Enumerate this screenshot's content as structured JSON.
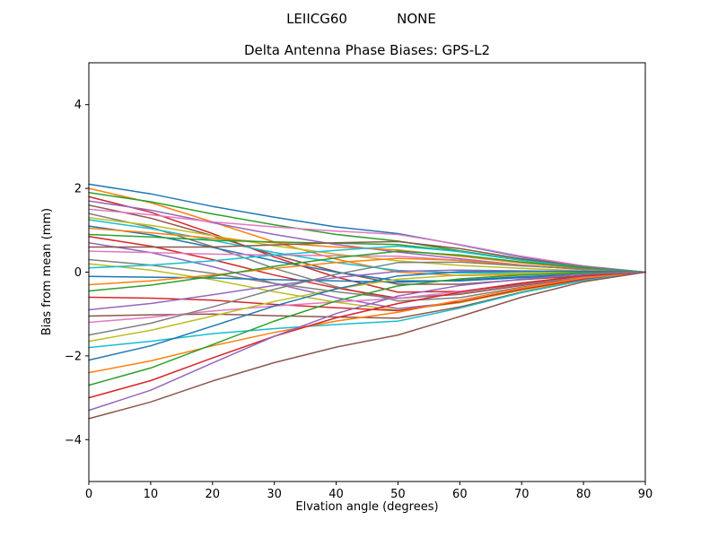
{
  "chart_data": {
    "type": "line",
    "suptitle_left": "LEIICG60",
    "suptitle_right": "NONE",
    "title": "Delta Antenna Phase Biases: GPS-L2",
    "xlabel": "Elvation angle (degrees)",
    "ylabel": "Bias from mean (mm)",
    "xlim": [
      0,
      90
    ],
    "ylim": [
      -5,
      5
    ],
    "xticks": [
      0,
      10,
      20,
      30,
      40,
      50,
      60,
      70,
      80,
      90
    ],
    "yticks": [
      -4,
      -2,
      0,
      2,
      4
    ],
    "grid": false,
    "legend": false,
    "x": [
      0,
      10,
      20,
      30,
      40,
      50,
      60,
      70,
      80,
      90
    ],
    "palette": [
      "#1f77b4",
      "#ff7f0e",
      "#2ca02c",
      "#d62728",
      "#9467bd",
      "#8c564b",
      "#e377c2",
      "#7f7f7f",
      "#bcbd22",
      "#17becf"
    ],
    "series": [
      {
        "values": [
          2.1,
          1.87,
          1.57,
          1.31,
          1.08,
          0.92,
          0.65,
          0.36,
          0.14,
          0
        ]
      },
      {
        "values": [
          2.0,
          1.66,
          1.2,
          0.72,
          0.31,
          0.0,
          -0.08,
          -0.06,
          -0.04,
          0
        ]
      },
      {
        "values": [
          1.9,
          1.68,
          1.39,
          1.13,
          0.9,
          0.74,
          0.51,
          0.29,
          0.11,
          0
        ]
      },
      {
        "values": [
          1.8,
          1.43,
          0.92,
          0.36,
          -0.12,
          -0.48,
          -0.46,
          -0.28,
          -0.13,
          0
        ]
      },
      {
        "values": [
          1.7,
          1.48,
          1.18,
          0.9,
          0.66,
          0.48,
          0.32,
          0.17,
          0.06,
          0
        ]
      },
      {
        "values": [
          1.6,
          1.29,
          0.87,
          0.41,
          0.01,
          -0.29,
          -0.29,
          -0.18,
          -0.09,
          0
        ]
      },
      {
        "values": [
          1.5,
          1.37,
          1.2,
          1.08,
          0.98,
          0.9,
          0.66,
          0.38,
          0.15,
          0
        ]
      },
      {
        "values": [
          1.4,
          1.07,
          0.61,
          0.09,
          -0.35,
          -0.69,
          -0.61,
          -0.36,
          -0.17,
          0
        ]
      },
      {
        "values": [
          1.3,
          1.12,
          0.87,
          0.63,
          0.43,
          0.27,
          0.16,
          0.09,
          0.03,
          0
        ]
      },
      {
        "values": [
          1.25,
          1.04,
          0.76,
          0.47,
          0.23,
          0.04,
          -0.02,
          -0.02,
          -0.02,
          0
        ]
      },
      {
        "values": [
          1.1,
          0.89,
          0.59,
          0.27,
          0.0,
          -0.21,
          -0.21,
          -0.13,
          -0.06,
          0
        ]
      },
      {
        "values": [
          1.05,
          0.94,
          0.81,
          0.7,
          0.6,
          0.53,
          0.38,
          0.22,
          0.09,
          0
        ]
      },
      {
        "values": [
          0.9,
          0.84,
          0.76,
          0.72,
          0.69,
          0.66,
          0.49,
          0.28,
          0.11,
          0
        ]
      },
      {
        "values": [
          0.85,
          0.62,
          0.3,
          -0.07,
          -0.38,
          -0.62,
          -0.53,
          -0.32,
          -0.14,
          0
        ]
      },
      {
        "values": [
          0.7,
          0.47,
          0.13,
          -0.27,
          -0.61,
          -0.87,
          -0.72,
          -0.43,
          -0.19,
          0
        ]
      },
      {
        "values": [
          0.6,
          0.6,
          0.6,
          0.65,
          0.7,
          0.73,
          0.56,
          0.32,
          0.13,
          0
        ]
      },
      {
        "values": [
          0.5,
          0.47,
          0.43,
          0.41,
          0.39,
          0.38,
          0.28,
          0.16,
          0.07,
          0
        ]
      },
      {
        "values": [
          0.3,
          0.17,
          -0.03,
          -0.27,
          -0.47,
          -0.63,
          -0.52,
          -0.3,
          -0.13,
          0
        ]
      },
      {
        "values": [
          0.2,
          0.05,
          -0.18,
          -0.47,
          -0.72,
          -0.91,
          -0.73,
          -0.43,
          -0.19,
          0
        ]
      },
      {
        "values": [
          0.1,
          0.17,
          0.27,
          0.41,
          0.52,
          0.62,
          0.49,
          0.28,
          0.12,
          0
        ]
      },
      {
        "values": [
          -0.1,
          -0.12,
          -0.14,
          -0.18,
          -0.21,
          -0.24,
          -0.19,
          -0.11,
          -0.05,
          0
        ]
      },
      {
        "values": [
          -0.3,
          -0.21,
          -0.07,
          0.09,
          0.23,
          0.33,
          0.28,
          0.16,
          0.07,
          0
        ]
      },
      {
        "values": [
          -0.45,
          -0.31,
          -0.1,
          0.14,
          0.34,
          0.5,
          0.41,
          0.24,
          0.11,
          0
        ]
      },
      {
        "values": [
          -0.6,
          -0.62,
          -0.67,
          -0.77,
          -0.85,
          -0.92,
          -0.71,
          -0.41,
          -0.17,
          0
        ]
      },
      {
        "values": [
          -0.9,
          -0.75,
          -0.54,
          -0.32,
          -0.13,
          0.02,
          0.05,
          0.03,
          0.02,
          0
        ]
      },
      {
        "values": [
          -1.05,
          -1.02,
          -1.0,
          -1.04,
          -1.07,
          -1.1,
          -0.83,
          -0.48,
          -0.2,
          0
        ]
      },
      {
        "values": [
          -1.2,
          -1.08,
          -0.93,
          -0.81,
          -0.71,
          -0.63,
          -0.46,
          -0.26,
          -0.1,
          0
        ]
      },
      {
        "values": [
          -1.5,
          -1.22,
          -0.83,
          -0.41,
          -0.05,
          0.23,
          0.24,
          0.15,
          0.08,
          0
        ]
      },
      {
        "values": [
          -1.65,
          -1.39,
          -1.05,
          -0.7,
          -0.4,
          -0.17,
          -0.07,
          -0.03,
          0.0,
          0
        ]
      },
      {
        "values": [
          -1.8,
          -1.65,
          -1.47,
          -1.35,
          -1.25,
          -1.17,
          -0.86,
          -0.49,
          -0.2,
          0
        ]
      },
      {
        "values": [
          -2.1,
          -1.76,
          -1.29,
          -0.81,
          -0.4,
          -0.09,
          0.01,
          0.02,
          0.02,
          0
        ]
      },
      {
        "values": [
          -2.4,
          -2.12,
          -1.76,
          -1.44,
          -1.17,
          -0.96,
          -0.67,
          -0.38,
          -0.14,
          0
        ]
      },
      {
        "values": [
          -2.7,
          -2.29,
          -1.73,
          -1.17,
          -0.69,
          -0.33,
          -0.16,
          -0.07,
          -0.01,
          0
        ]
      },
      {
        "values": [
          -3.0,
          -2.59,
          -2.05,
          -1.53,
          -1.09,
          -0.75,
          -0.48,
          -0.26,
          -0.09,
          0
        ]
      },
      {
        "values": [
          -3.3,
          -2.82,
          -2.17,
          -1.53,
          -0.99,
          -0.57,
          -0.32,
          -0.17,
          -0.05,
          0
        ]
      },
      {
        "values": [
          -3.5,
          -3.1,
          -2.6,
          -2.16,
          -1.79,
          -1.5,
          -1.06,
          -0.6,
          -0.23,
          0
        ]
      }
    ]
  }
}
